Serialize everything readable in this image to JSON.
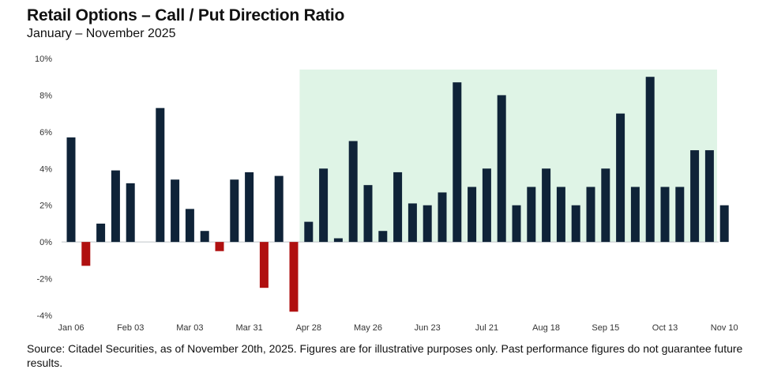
{
  "title": "Retail Options – Call / Put Direction Ratio",
  "subtitle": "January – November 2025",
  "source": "Source: Citadel Securities, as of November 20th, 2025. Figures are for illustrative purposes only. Past performance figures do not guarantee future results.",
  "colors": {
    "positive": "#0f2338",
    "negative": "#b01010",
    "highlight": "#dff4e6"
  },
  "chart_data": {
    "type": "bar",
    "title": "Retail Options – Call / Put Direction Ratio",
    "xlabel": "",
    "ylabel": "",
    "ylim": [
      -4,
      10
    ],
    "yticks": [
      "-4%",
      "-2%",
      "0%",
      "2%",
      "4%",
      "6%",
      "8%",
      "10%"
    ],
    "x_tick_labels": [
      {
        "index": 0,
        "label": "Jan 06"
      },
      {
        "index": 4,
        "label": "Feb 03"
      },
      {
        "index": 8,
        "label": "Mar 03"
      },
      {
        "index": 12,
        "label": "Mar 31"
      },
      {
        "index": 16,
        "label": "Apr 28"
      },
      {
        "index": 20,
        "label": "May 26"
      },
      {
        "index": 24,
        "label": "Jun 23"
      },
      {
        "index": 28,
        "label": "Jul 21"
      },
      {
        "index": 32,
        "label": "Aug 18"
      },
      {
        "index": 36,
        "label": "Sep 15"
      },
      {
        "index": 40,
        "label": "Oct 13"
      },
      {
        "index": 44,
        "label": "Nov 10"
      }
    ],
    "highlight_from_index": 15,
    "values": [
      5.7,
      -1.3,
      1.0,
      3.9,
      3.2,
      null,
      7.3,
      3.4,
      1.8,
      0.6,
      -0.5,
      3.4,
      3.8,
      -2.5,
      3.6,
      -3.8,
      1.1,
      4.0,
      0.2,
      5.5,
      3.1,
      0.6,
      3.8,
      2.1,
      2.0,
      2.7,
      8.7,
      3.0,
      4.0,
      8.0,
      2.0,
      3.0,
      4.0,
      3.0,
      2.0,
      3.0,
      4.0,
      7.0,
      3.0,
      9.0,
      3.0,
      3.0,
      5.0,
      5.0,
      2.0
    ]
  }
}
